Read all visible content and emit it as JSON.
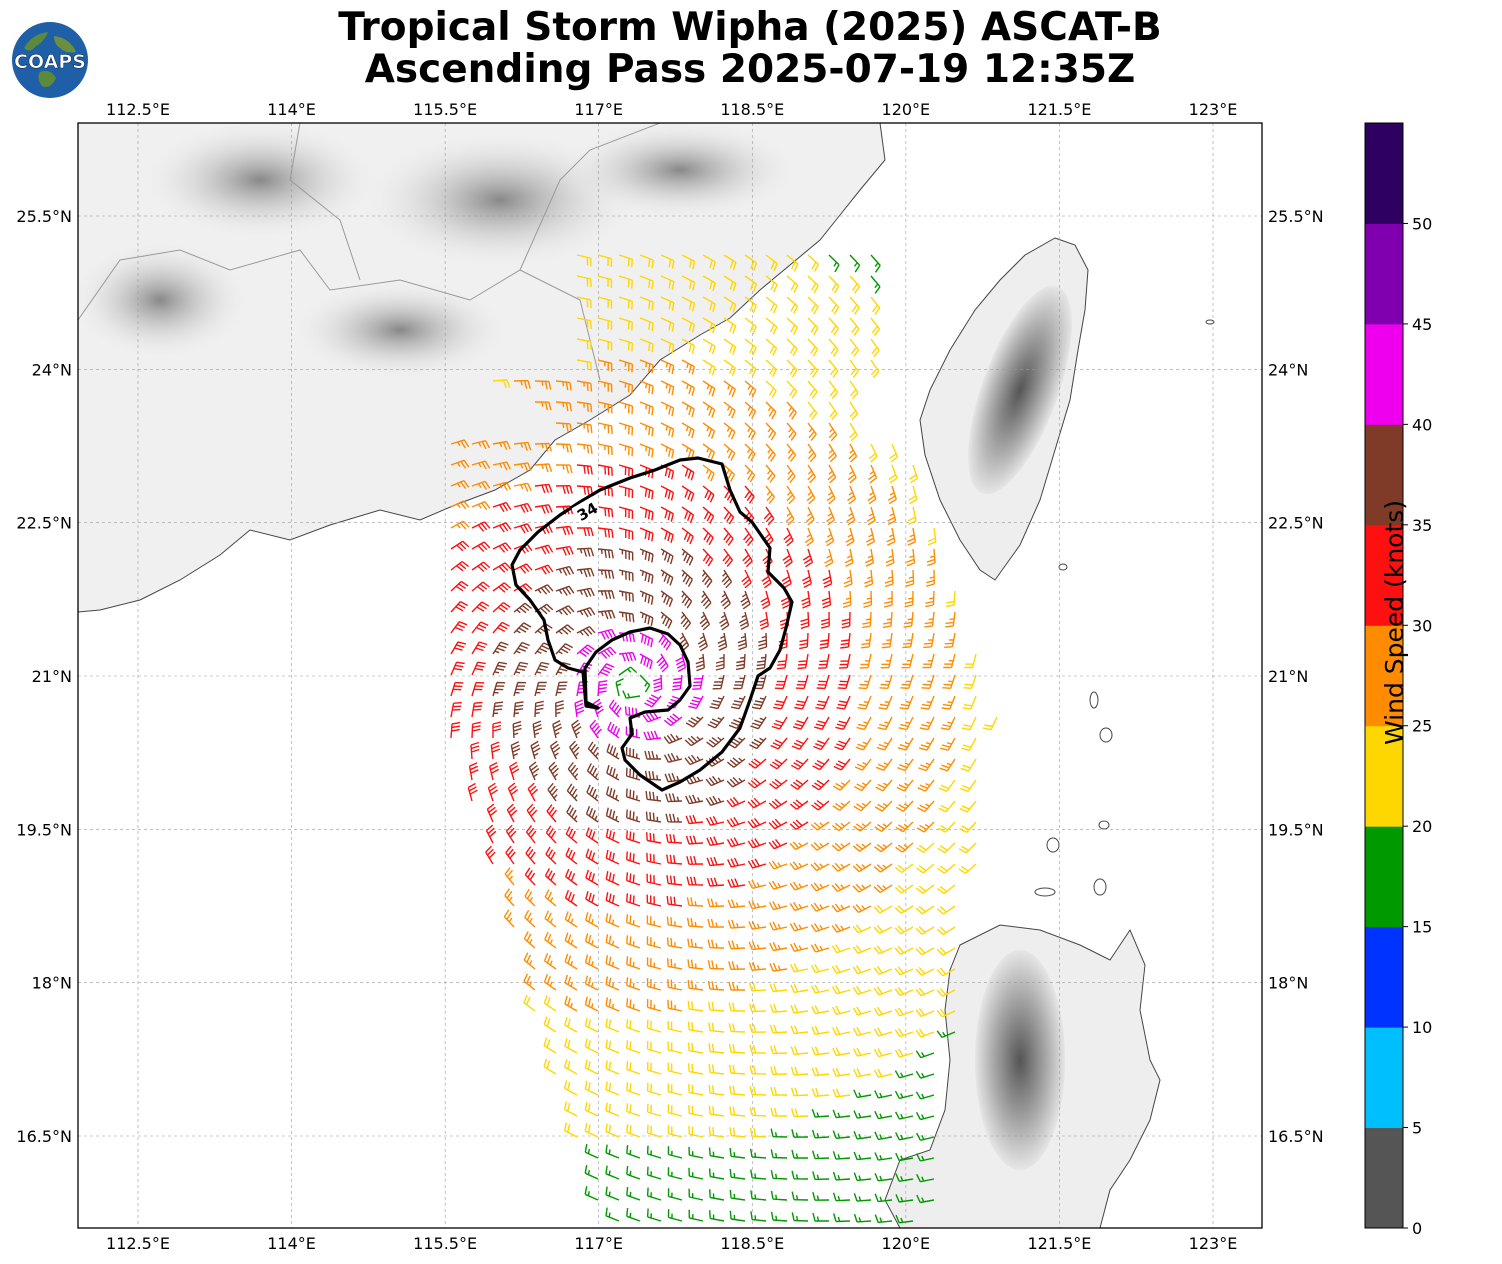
{
  "title_line1": "Tropical Storm Wipha (2025) ASCAT-B",
  "title_line2": "Ascending Pass 2025-07-19 12:35Z",
  "logo_text": "COAPS",
  "lon_ticks": [
    "112.5°E",
    "114°E",
    "115.5°E",
    "117°E",
    "118.5°E",
    "120°E",
    "121.5°E",
    "123°E"
  ],
  "lat_ticks": [
    "25.5°N",
    "24°N",
    "22.5°N",
    "21°N",
    "19.5°N",
    "18°N",
    "16.5°N"
  ],
  "contour_label": "34",
  "colorbar": {
    "label": "Wind Speed (knots)",
    "ticks": [
      "0",
      "5",
      "10",
      "15",
      "20",
      "25",
      "30",
      "35",
      "40",
      "45",
      "50"
    ],
    "colors": [
      "#555555",
      "#00bfff",
      "#0033ff",
      "#009900",
      "#ffd700",
      "#ff8c00",
      "#ff1010",
      "#7f3b28",
      "#ee00ee",
      "#8000b0",
      "#2e0060"
    ]
  },
  "storm_center": {
    "lon": 117.35,
    "lat": 20.9
  }
}
